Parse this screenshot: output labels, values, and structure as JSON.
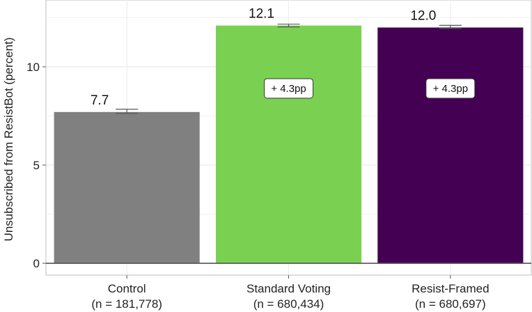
{
  "chart_data": {
    "type": "bar",
    "categories": [
      "Control",
      "Standard Voting",
      "Resist-Framed"
    ],
    "category_sublabels": [
      "(n = 181,778)",
      "(n = 680,434)",
      "(n = 680,697)"
    ],
    "values": [
      7.7,
      12.1,
      12.0
    ],
    "value_labels": [
      "7.7",
      "12.1",
      "12.0"
    ],
    "error_bars": [
      [
        7.63,
        7.84
      ],
      [
        12.03,
        12.17
      ],
      [
        11.95,
        12.11
      ]
    ],
    "annotations": [
      "",
      "+ 4.3pp",
      "+ 4.3pp"
    ],
    "annotation_y": 8.9,
    "colors": [
      "#808080",
      "#7ad151",
      "#440154"
    ],
    "ylabel": "Unsubscribed from ResistBot (percent)",
    "xlabel": "",
    "ylim": [
      -0.6,
      13.4
    ],
    "yticks": [
      0,
      5,
      10
    ],
    "grid": true
  }
}
